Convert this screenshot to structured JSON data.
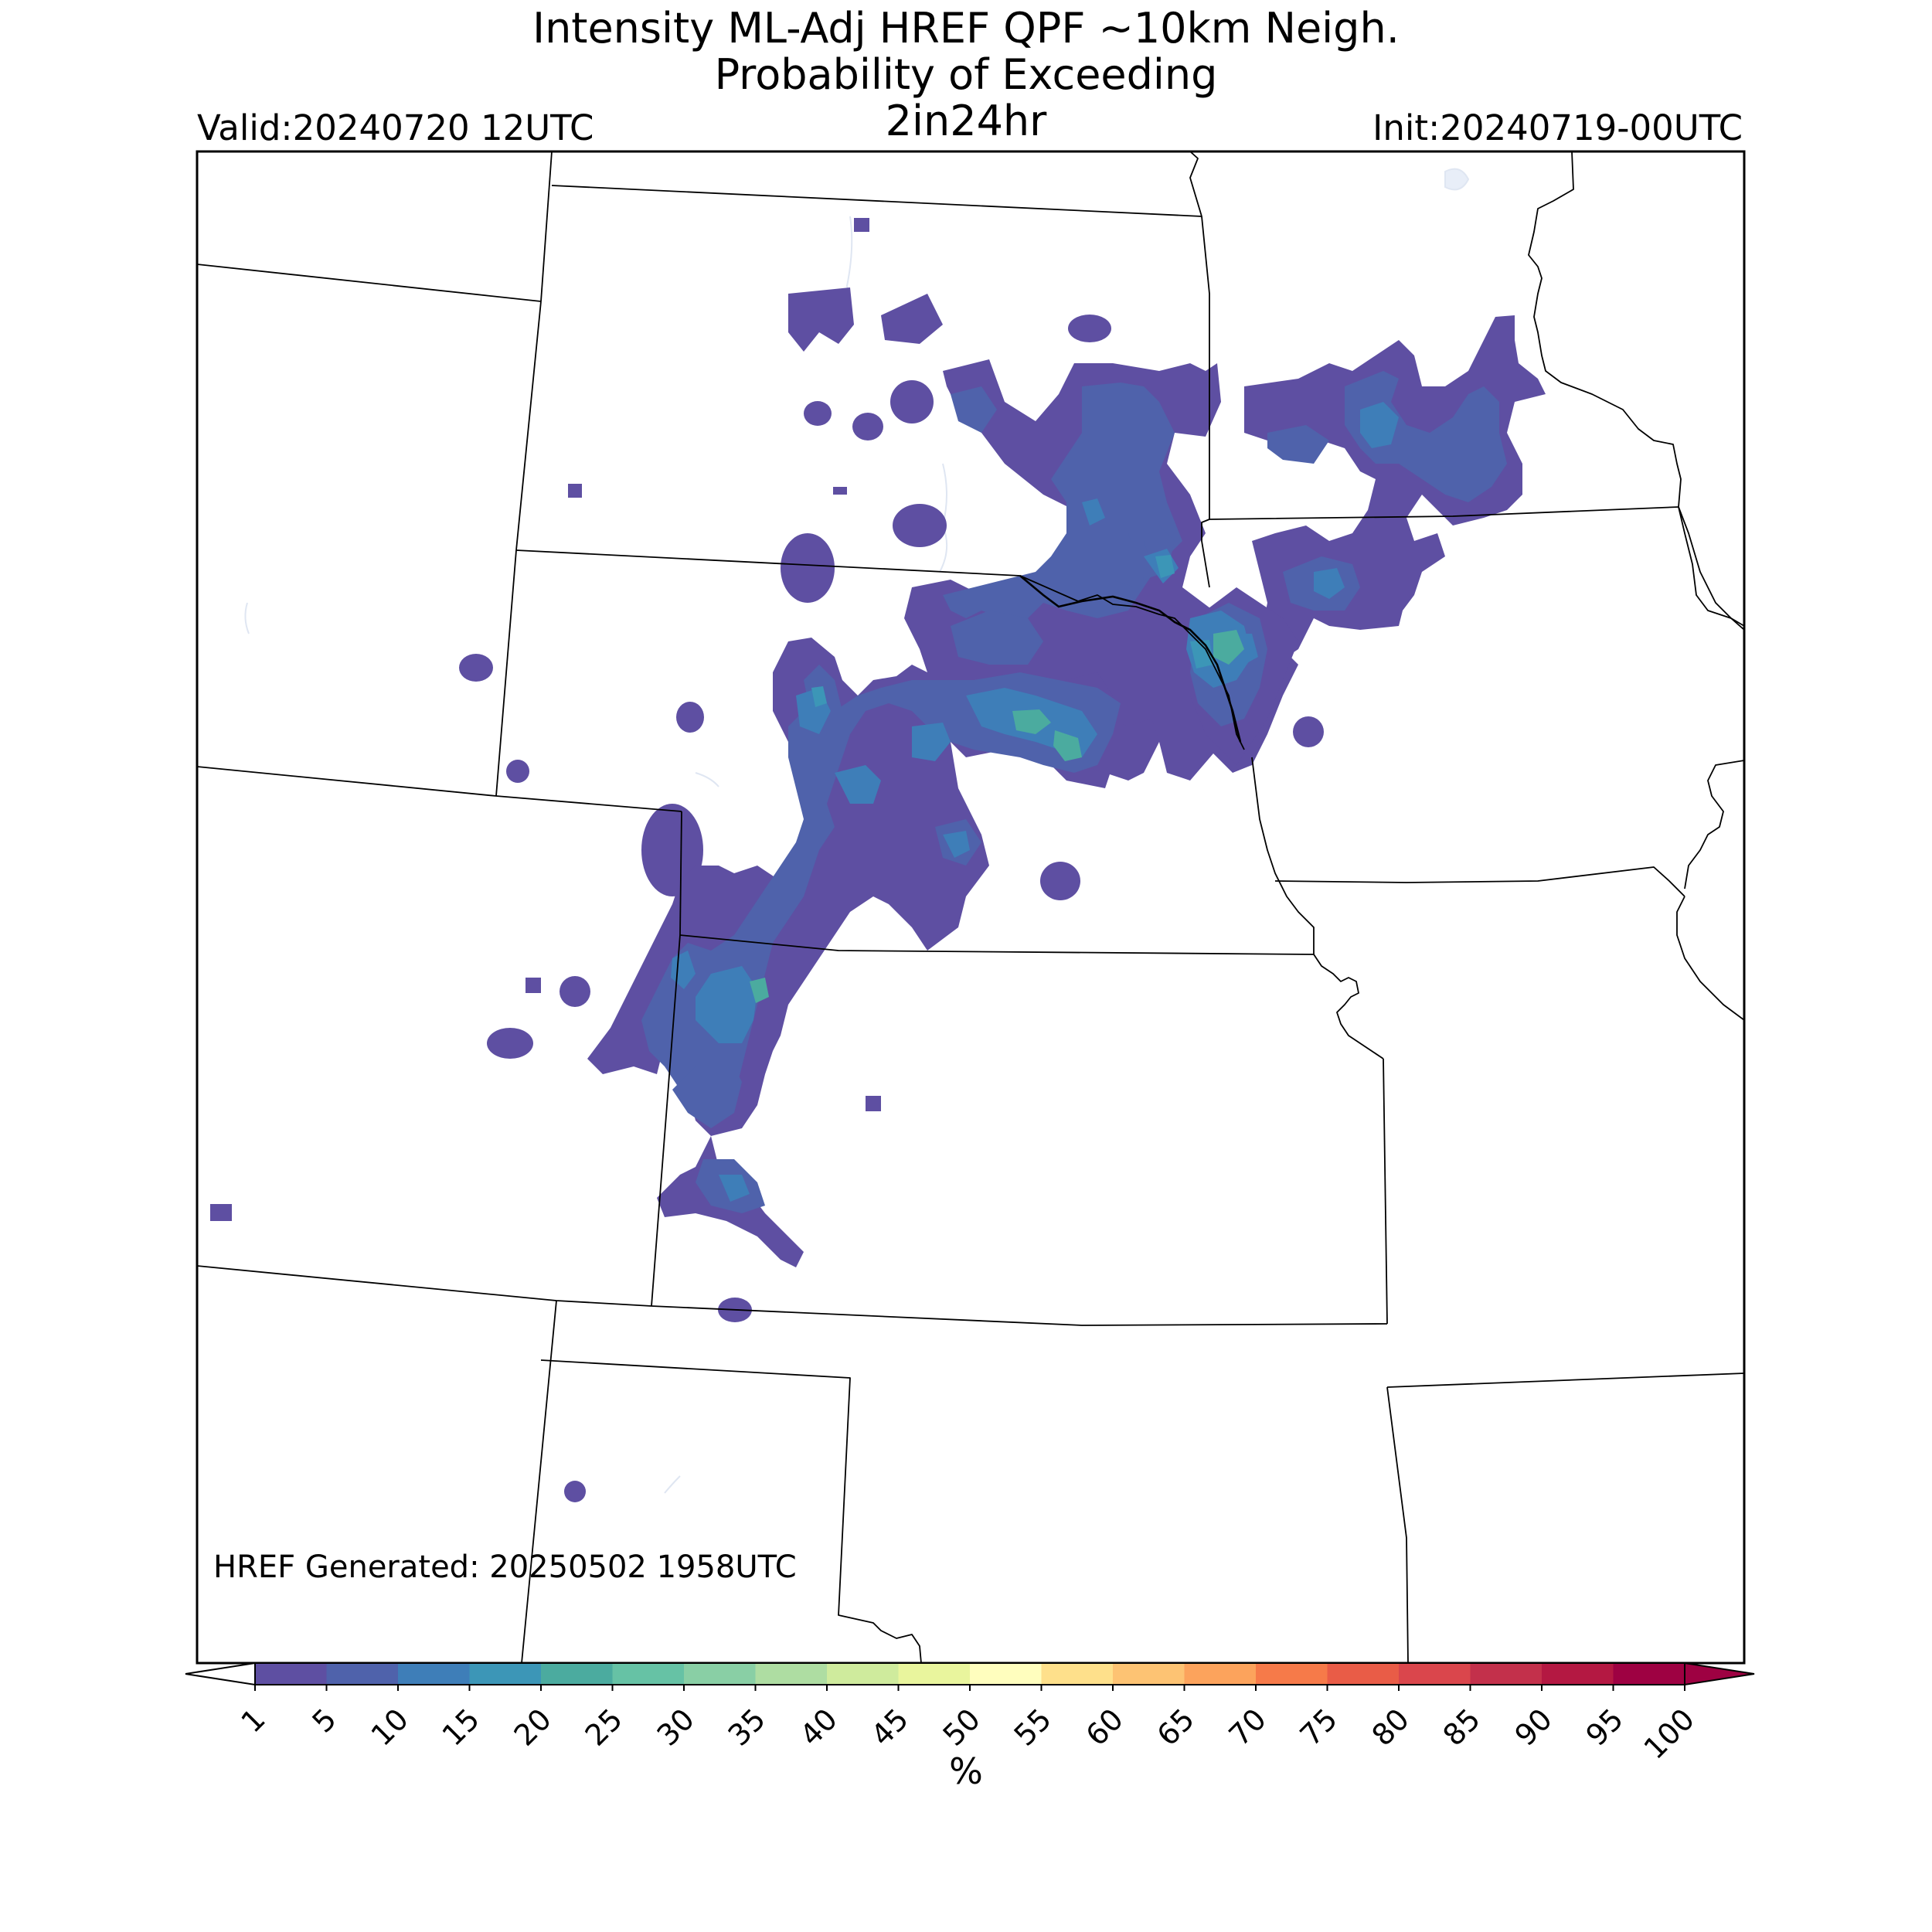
{
  "header": {
    "title_line1": "Intensity ML-Adj HREF QPF ~10km Neigh.",
    "title_line2": "Probability of Exceeding",
    "title_line3": "2in24hr",
    "valid": "Valid:20240720 12UTC",
    "init": "Init:20240719-00UTC"
  },
  "footnote": "HREF Generated: 20250502 1958UTC",
  "colorbar": {
    "label": "%",
    "ticks": [
      "1",
      "5",
      "10",
      "15",
      "20",
      "25",
      "30",
      "35",
      "40",
      "45",
      "50",
      "55",
      "60",
      "65",
      "70",
      "75",
      "80",
      "85",
      "90",
      "95",
      "100"
    ],
    "colors": [
      "#5e4fa2",
      "#4f62ab",
      "#3e7eb8",
      "#3c96b7",
      "#4bab9f",
      "#66c2a5",
      "#89cfa5",
      "#aedda2",
      "#cfeb9d",
      "#e9f59d",
      "#fffebe",
      "#fee08b",
      "#fdc373",
      "#fca35c",
      "#f67a49",
      "#e95c47",
      "#da464c",
      "#c3304b",
      "#b41842",
      "#9e0142"
    ],
    "over_color": "#9e0142",
    "under_color": "#ffffff"
  },
  "map": {
    "description_colors": {
      "prob_1_5": "#5e4fa2",
      "prob_5_10": "#4f62ab",
      "prob_10_15": "#3e7eb8",
      "prob_15_20": "#3c96b7",
      "prob_20_25": "#4bab9f",
      "boundary": "#000000",
      "water": "#e8eef8"
    }
  }
}
